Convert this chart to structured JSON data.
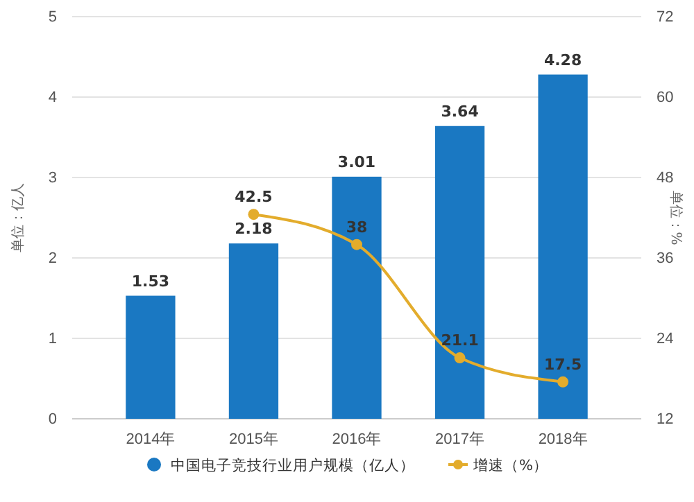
{
  "chart_data": {
    "type": "bar",
    "categories": [
      "2014年",
      "2015年",
      "2016年",
      "2017年",
      "2018年"
    ],
    "series": [
      {
        "name": "中国电子竞技行业用户规模（亿人）",
        "color": "#1a78c2",
        "values": [
          1.53,
          2.18,
          3.01,
          3.64,
          4.28
        ]
      },
      {
        "name": "增速（%）",
        "type": "line",
        "axis": "y2",
        "color": "#e3ac2c",
        "values": [
          null,
          42.5,
          38,
          21.1,
          17.5
        ]
      }
    ],
    "ylabel": "单位：亿人",
    "y2label": "单位：%",
    "ylim": [
      0,
      5
    ],
    "yticks": [
      0,
      1,
      2,
      3,
      4,
      5
    ],
    "y2lim": [
      12,
      72
    ],
    "y2ticks": [
      12,
      24,
      36,
      48,
      60,
      72
    ],
    "grid": "y",
    "legend": "bottom",
    "data_labels": true,
    "marker": "circle"
  }
}
